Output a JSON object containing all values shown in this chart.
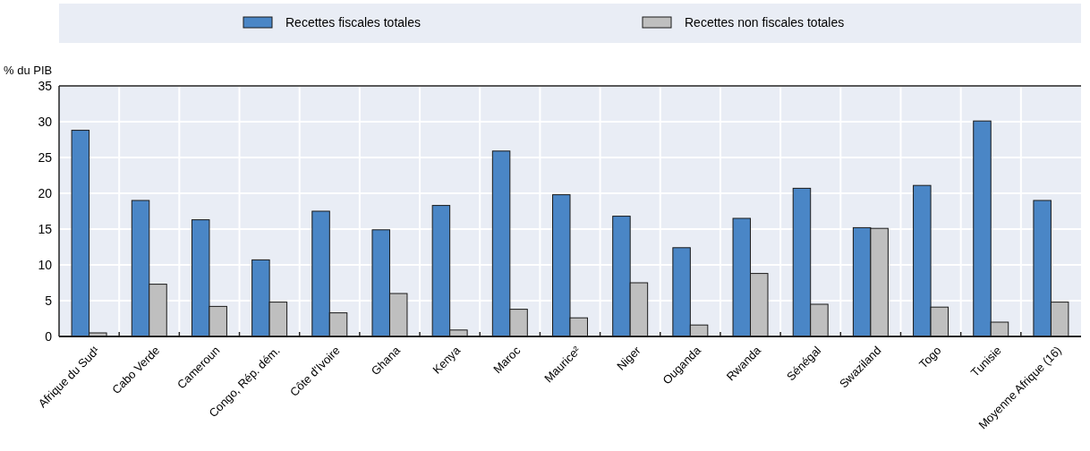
{
  "chart_data": {
    "type": "bar",
    "ylabel": "% du PIB",
    "categories": [
      "Afrique du Sud¹",
      "Cabo Verde",
      "Cameroun",
      "Congo, Rép. dém.",
      "Côte d'Ivoire",
      "Ghana",
      "Kenya",
      "Maroc",
      "Maurice²",
      "Niger",
      "Ouganda",
      "Rwanda",
      "Sénégal",
      "Swaziland",
      "Togo",
      "Tunisie",
      "Moyenne Afrique (16)"
    ],
    "series": [
      {
        "name": "Recettes fiscales totales",
        "color": "#4a86c6",
        "values": [
          28.8,
          19.0,
          16.3,
          10.7,
          17.5,
          14.9,
          18.3,
          25.9,
          19.8,
          16.8,
          12.4,
          16.5,
          20.7,
          15.2,
          21.1,
          30.1,
          19.0
        ]
      },
      {
        "name": "Recettes non fiscales totales",
        "color": "#bfbfbf",
        "values": [
          0.5,
          7.3,
          4.2,
          4.8,
          3.3,
          6.0,
          0.9,
          3.8,
          2.6,
          7.5,
          1.6,
          8.8,
          4.5,
          15.1,
          4.1,
          2.0,
          4.8
        ]
      }
    ],
    "ylim": [
      0,
      35
    ],
    "yticks": [
      0,
      5,
      10,
      15,
      20,
      25,
      30,
      35
    ],
    "grid": true,
    "legend": "top"
  }
}
